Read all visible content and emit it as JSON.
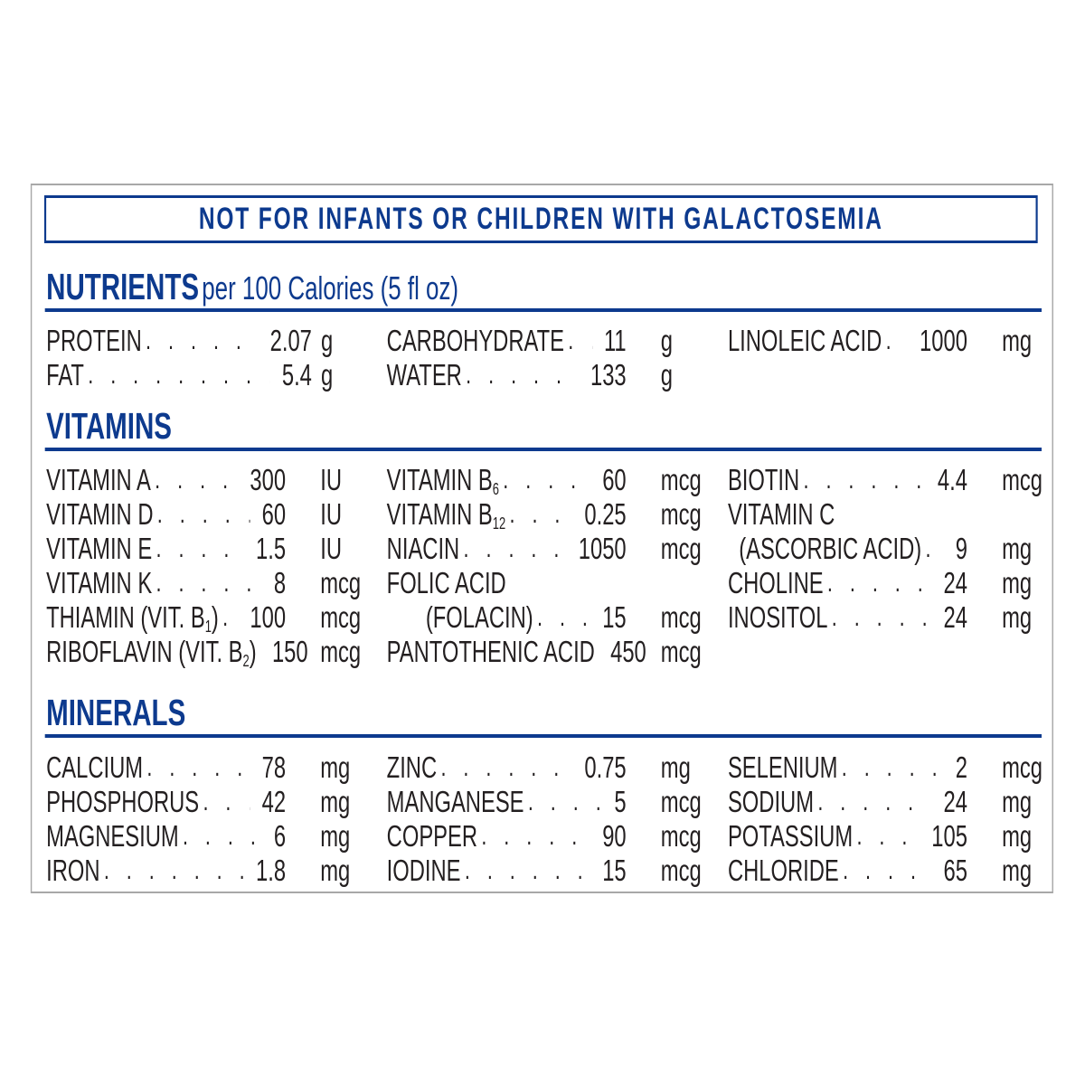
{
  "banner": "NOT FOR INFANTS OR CHILDREN WITH GALACTOSEMIA",
  "colors": {
    "brand_blue": "#0d3a8e",
    "text": "#231f20",
    "frame": "#a8a8a8"
  },
  "sections": [
    {
      "title": "NUTRIENTS",
      "subtitle": "per 100 Calories (5 fl oz)",
      "columns": [
        [
          {
            "label": "PROTEIN",
            "value": "2.07",
            "unit": "g"
          },
          {
            "label": "FAT",
            "value": "5.4",
            "unit": "g"
          }
        ],
        [
          {
            "label": "CARBOHYDRATE",
            "value": "11",
            "unit": "g"
          },
          {
            "label": "WATER",
            "value": "133",
            "unit": "g"
          }
        ],
        [
          {
            "label": "LINOLEIC ACID",
            "value": "1000",
            "unit": "mg"
          }
        ]
      ]
    },
    {
      "title": "VITAMINS",
      "columns": [
        [
          {
            "label": "VITAMIN A",
            "value": "300",
            "unit": "IU"
          },
          {
            "label": "VITAMIN D",
            "value": "60",
            "unit": "IU"
          },
          {
            "label": "VITAMIN E",
            "value": "1.5",
            "unit": "IU"
          },
          {
            "label": "VITAMIN K",
            "value": "8",
            "unit": "mcg"
          },
          {
            "label": "THIAMIN (VIT. B",
            "sub": "1",
            "after": ")",
            "value": "100",
            "unit": "mcg"
          },
          {
            "label": "RIBOFLAVIN (VIT. B",
            "sub": "2",
            "after": ")",
            "value": "150",
            "unit": "mcg"
          }
        ],
        [
          {
            "label": "VITAMIN B",
            "sub": "6",
            "value": "60",
            "unit": "mcg"
          },
          {
            "label": "VITAMIN B",
            "sub": "12",
            "value": "0.25",
            "unit": "mcg"
          },
          {
            "label": "NIACIN",
            "value": "1050",
            "unit": "mcg"
          },
          {
            "label": "FOLIC ACID"
          },
          {
            "label": "(FOLACIN)",
            "value": "15",
            "unit": "mcg",
            "indent": "large"
          },
          {
            "label": "PANTOTHENIC ACID",
            "value": "450",
            "unit": "mcg"
          }
        ],
        [
          {
            "label": "BIOTIN",
            "value": "4.4",
            "unit": "mcg"
          },
          {
            "label": "VITAMIN C"
          },
          {
            "label": "(ASCORBIC ACID)",
            "value": "9",
            "unit": "mg",
            "indent": "small"
          },
          {
            "label": "CHOLINE",
            "value": "24",
            "unit": "mg"
          },
          {
            "label": "INOSITOL",
            "value": "24",
            "unit": "mg"
          }
        ]
      ]
    },
    {
      "title": "MINERALS",
      "columns": [
        [
          {
            "label": "CALCIUM",
            "value": "78",
            "unit": "mg"
          },
          {
            "label": "PHOSPHORUS",
            "value": "42",
            "unit": "mg"
          },
          {
            "label": "MAGNESIUM",
            "value": "6",
            "unit": "mg"
          },
          {
            "label": "IRON",
            "value": "1.8",
            "unit": "mg"
          }
        ],
        [
          {
            "label": "ZINC",
            "value": "0.75",
            "unit": "mg"
          },
          {
            "label": "MANGANESE",
            "value": "5",
            "unit": "mcg"
          },
          {
            "label": "COPPER",
            "value": "90",
            "unit": "mcg"
          },
          {
            "label": "IODINE",
            "value": "15",
            "unit": "mcg"
          }
        ],
        [
          {
            "label": "SELENIUM",
            "value": "2",
            "unit": "mcg"
          },
          {
            "label": "SODIUM",
            "value": "24",
            "unit": "mg"
          },
          {
            "label": "POTASSIUM",
            "value": "105",
            "unit": "mg"
          },
          {
            "label": "CHLORIDE",
            "value": "65",
            "unit": "mg"
          }
        ]
      ]
    }
  ]
}
